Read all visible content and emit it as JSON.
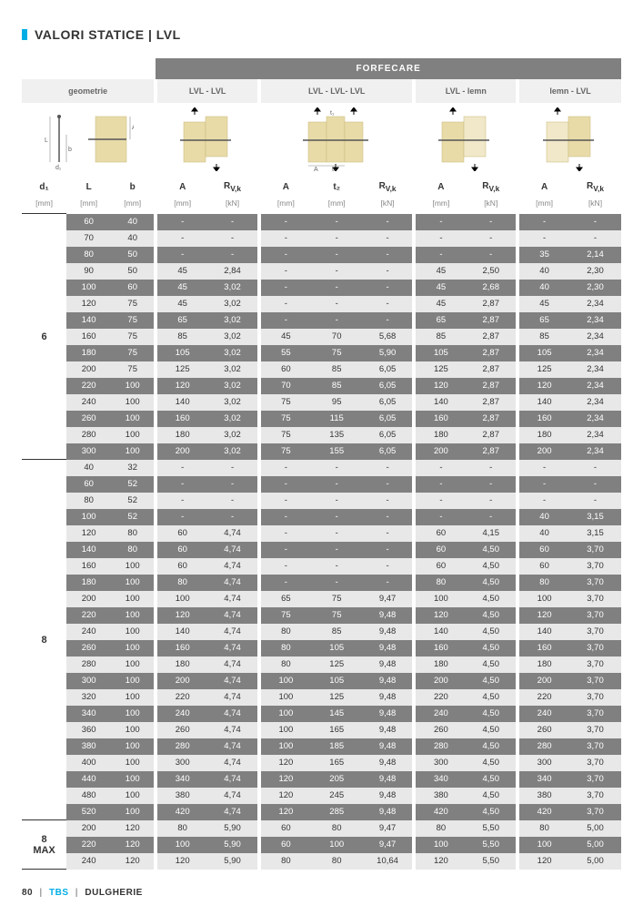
{
  "title": "VALORI STATICE | LVL",
  "forfecare_label": "FORFECARE",
  "groups": {
    "geometrie": "geometrie",
    "lvl_lvl": "LVL - LVL",
    "lvl_lvl_lvl": "LVL - LVL- LVL",
    "lvl_lemn": "LVL - lemn",
    "lemn_lvl": "lemn - LVL"
  },
  "cols": {
    "d1": "d₁",
    "L": "L",
    "b": "b",
    "A": "A",
    "t2": "t₂",
    "Rvk": "R"
  },
  "rvk_sub": "V,k",
  "units": {
    "mm": "[mm]",
    "kN": "[kN]"
  },
  "colors": {
    "accent": "#00aee6",
    "stripe_light": "#e8e8e8",
    "stripe_dark": "#808080",
    "wood": "#e8dba8"
  },
  "d1_groups": [
    {
      "d1": "6",
      "rows": [
        [
          "60",
          "40",
          "-",
          "-",
          "-",
          "-",
          "-",
          "-",
          "-",
          "-",
          "-"
        ],
        [
          "70",
          "40",
          "-",
          "-",
          "-",
          "-",
          "-",
          "-",
          "-",
          "-",
          "-"
        ],
        [
          "80",
          "50",
          "-",
          "-",
          "-",
          "-",
          "-",
          "-",
          "-",
          "35",
          "2,14"
        ],
        [
          "90",
          "50",
          "45",
          "2,84",
          "-",
          "-",
          "-",
          "45",
          "2,50",
          "40",
          "2,30"
        ],
        [
          "100",
          "60",
          "45",
          "3,02",
          "-",
          "-",
          "-",
          "45",
          "2,68",
          "40",
          "2,30"
        ],
        [
          "120",
          "75",
          "45",
          "3,02",
          "-",
          "-",
          "-",
          "45",
          "2,87",
          "45",
          "2,34"
        ],
        [
          "140",
          "75",
          "65",
          "3,02",
          "-",
          "-",
          "-",
          "65",
          "2,87",
          "65",
          "2,34"
        ],
        [
          "160",
          "75",
          "85",
          "3,02",
          "45",
          "70",
          "5,68",
          "85",
          "2,87",
          "85",
          "2,34"
        ],
        [
          "180",
          "75",
          "105",
          "3,02",
          "55",
          "75",
          "5,90",
          "105",
          "2,87",
          "105",
          "2,34"
        ],
        [
          "200",
          "75",
          "125",
          "3,02",
          "60",
          "85",
          "6,05",
          "125",
          "2,87",
          "125",
          "2,34"
        ],
        [
          "220",
          "100",
          "120",
          "3,02",
          "70",
          "85",
          "6,05",
          "120",
          "2,87",
          "120",
          "2,34"
        ],
        [
          "240",
          "100",
          "140",
          "3,02",
          "75",
          "95",
          "6,05",
          "140",
          "2,87",
          "140",
          "2,34"
        ],
        [
          "260",
          "100",
          "160",
          "3,02",
          "75",
          "115",
          "6,05",
          "160",
          "2,87",
          "160",
          "2,34"
        ],
        [
          "280",
          "100",
          "180",
          "3,02",
          "75",
          "135",
          "6,05",
          "180",
          "2,87",
          "180",
          "2,34"
        ],
        [
          "300",
          "100",
          "200",
          "3,02",
          "75",
          "155",
          "6,05",
          "200",
          "2,87",
          "200",
          "2,34"
        ]
      ]
    },
    {
      "d1": "8",
      "rows": [
        [
          "40",
          "32",
          "-",
          "-",
          "-",
          "-",
          "-",
          "-",
          "-",
          "-",
          "-"
        ],
        [
          "60",
          "52",
          "-",
          "-",
          "-",
          "-",
          "-",
          "-",
          "-",
          "-",
          "-"
        ],
        [
          "80",
          "52",
          "-",
          "-",
          "-",
          "-",
          "-",
          "-",
          "-",
          "-",
          "-"
        ],
        [
          "100",
          "52",
          "-",
          "-",
          "-",
          "-",
          "-",
          "-",
          "-",
          "40",
          "3,15"
        ],
        [
          "120",
          "80",
          "60",
          "4,74",
          "-",
          "-",
          "-",
          "60",
          "4,15",
          "40",
          "3,15"
        ],
        [
          "140",
          "80",
          "60",
          "4,74",
          "-",
          "-",
          "-",
          "60",
          "4,50",
          "60",
          "3,70"
        ],
        [
          "160",
          "100",
          "60",
          "4,74",
          "-",
          "-",
          "-",
          "60",
          "4,50",
          "60",
          "3,70"
        ],
        [
          "180",
          "100",
          "80",
          "4,74",
          "-",
          "-",
          "-",
          "80",
          "4,50",
          "80",
          "3,70"
        ],
        [
          "200",
          "100",
          "100",
          "4,74",
          "65",
          "75",
          "9,47",
          "100",
          "4,50",
          "100",
          "3,70"
        ],
        [
          "220",
          "100",
          "120",
          "4,74",
          "75",
          "75",
          "9,48",
          "120",
          "4,50",
          "120",
          "3,70"
        ],
        [
          "240",
          "100",
          "140",
          "4,74",
          "80",
          "85",
          "9,48",
          "140",
          "4,50",
          "140",
          "3,70"
        ],
        [
          "260",
          "100",
          "160",
          "4,74",
          "80",
          "105",
          "9,48",
          "160",
          "4,50",
          "160",
          "3,70"
        ],
        [
          "280",
          "100",
          "180",
          "4,74",
          "80",
          "125",
          "9,48",
          "180",
          "4,50",
          "180",
          "3,70"
        ],
        [
          "300",
          "100",
          "200",
          "4,74",
          "100",
          "105",
          "9,48",
          "200",
          "4,50",
          "200",
          "3,70"
        ],
        [
          "320",
          "100",
          "220",
          "4,74",
          "100",
          "125",
          "9,48",
          "220",
          "4,50",
          "220",
          "3,70"
        ],
        [
          "340",
          "100",
          "240",
          "4,74",
          "100",
          "145",
          "9,48",
          "240",
          "4,50",
          "240",
          "3,70"
        ],
        [
          "360",
          "100",
          "260",
          "4,74",
          "100",
          "165",
          "9,48",
          "260",
          "4,50",
          "260",
          "3,70"
        ],
        [
          "380",
          "100",
          "280",
          "4,74",
          "100",
          "185",
          "9,48",
          "280",
          "4,50",
          "280",
          "3,70"
        ],
        [
          "400",
          "100",
          "300",
          "4,74",
          "120",
          "165",
          "9,48",
          "300",
          "4,50",
          "300",
          "3,70"
        ],
        [
          "440",
          "100",
          "340",
          "4,74",
          "120",
          "205",
          "9,48",
          "340",
          "4,50",
          "340",
          "3,70"
        ],
        [
          "480",
          "100",
          "380",
          "4,74",
          "120",
          "245",
          "9,48",
          "380",
          "4,50",
          "380",
          "3,70"
        ],
        [
          "520",
          "100",
          "420",
          "4,74",
          "120",
          "285",
          "9,48",
          "420",
          "4,50",
          "420",
          "3,70"
        ]
      ]
    },
    {
      "d1": "8\nMAX",
      "rows": [
        [
          "200",
          "120",
          "80",
          "5,90",
          "60",
          "80",
          "9,47",
          "80",
          "5,50",
          "80",
          "5,00"
        ],
        [
          "220",
          "120",
          "100",
          "5,90",
          "60",
          "100",
          "9,47",
          "100",
          "5,50",
          "100",
          "5,00"
        ],
        [
          "240",
          "120",
          "120",
          "5,90",
          "80",
          "80",
          "10,64",
          "120",
          "5,50",
          "120",
          "5,00"
        ]
      ]
    }
  ],
  "footer": {
    "page": "80",
    "brand": "TBS",
    "section": "DULGHERIE"
  }
}
